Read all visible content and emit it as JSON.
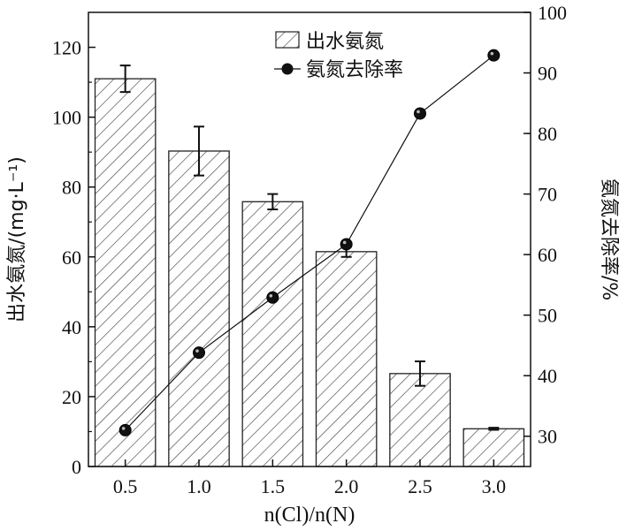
{
  "chart_data": {
    "type": "bar",
    "categories": [
      "0.5",
      "1.0",
      "1.5",
      "2.0",
      "2.5",
      "3.0"
    ],
    "xlabel": "n(Cl)/n(N)",
    "ylabel_left": "出水氨氮/(mg·L⁻¹)",
    "ylabel_right": "氨氮去除率/%",
    "ylim_left": [
      0,
      130
    ],
    "yticks_left": [
      0,
      20,
      40,
      60,
      80,
      100,
      120
    ],
    "ylim_right": [
      25,
      100
    ],
    "yticks_right": [
      30,
      40,
      50,
      60,
      70,
      80,
      90,
      100
    ],
    "grid": false,
    "legend_position": "top-center",
    "series": [
      {
        "name": "出水氨氮",
        "type": "bar",
        "axis": "left",
        "pattern": "hatched",
        "values": [
          111.0,
          90.3,
          75.8,
          61.5,
          26.6,
          10.8
        ],
        "errors": [
          3.8,
          7.0,
          2.2,
          1.5,
          3.5,
          0.3
        ]
      },
      {
        "name": "氨氮去除率",
        "type": "line",
        "axis": "right",
        "marker": "filled-circle",
        "values": [
          31.0,
          43.8,
          52.9,
          61.7,
          83.3,
          92.9
        ]
      }
    ]
  }
}
